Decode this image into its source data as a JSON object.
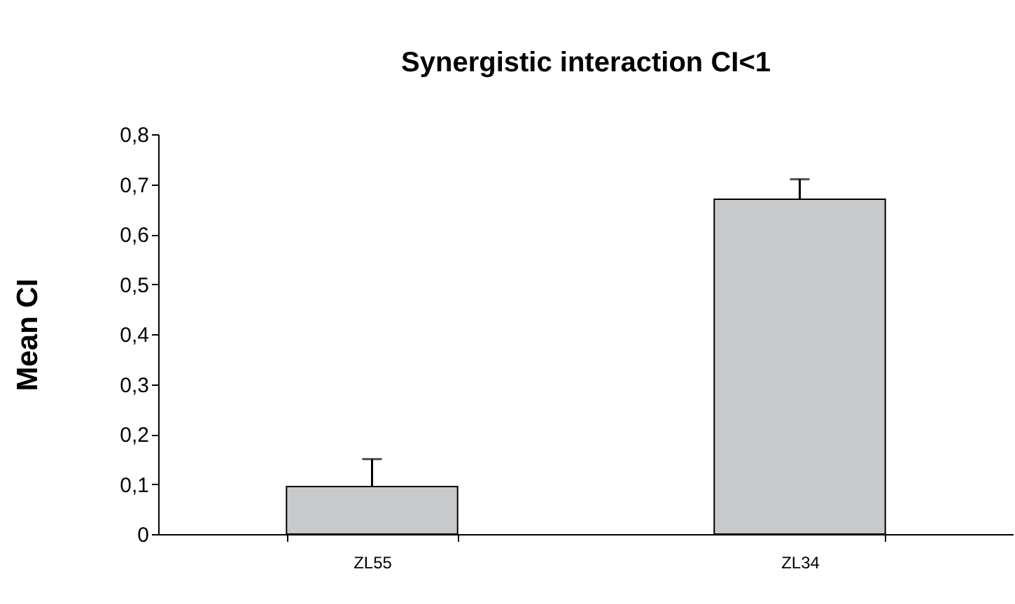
{
  "chart_data": {
    "type": "bar",
    "title": "Synergistic interaction CI<1",
    "ylabel": "Mean CI",
    "categories": [
      "ZL55",
      "ZL34"
    ],
    "values": [
      0.095,
      0.67
    ],
    "errors": [
      [
        0.095,
        0.15
      ],
      [
        0.67,
        0.71
      ]
    ],
    "color": "#c8c9cb",
    "ylim": [
      0,
      0.8
    ],
    "yticks": [
      0,
      {
        "value": 0.1,
        "label": "0,1"
      },
      {
        "value": 0.2,
        "label": "0,2"
      },
      {
        "value": 0.3,
        "label": "0,3"
      },
      {
        "value": 0.4,
        "label": "0,4"
      },
      {
        "value": 0.5,
        "label": "0,5"
      },
      {
        "value": 0.6,
        "label": "0,6"
      },
      {
        "value": 0.7,
        "label": "0,7"
      },
      {
        "value": 0.8,
        "label": "0,8"
      }
    ],
    "grid": false
  }
}
